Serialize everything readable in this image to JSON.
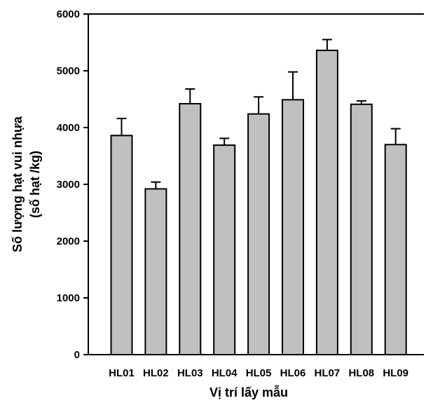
{
  "chart_data": {
    "type": "bar",
    "categories": [
      "HL01",
      "HL02",
      "HL03",
      "HL04",
      "HL05",
      "HL06",
      "HL07",
      "HL08",
      "HL09"
    ],
    "values": [
      3860,
      2920,
      4420,
      3690,
      4240,
      4490,
      5360,
      4410,
      3700
    ],
    "errors": [
      300,
      120,
      260,
      120,
      300,
      490,
      190,
      60,
      280
    ],
    "xlabel": "Vị trí lấy mẫu",
    "ylabel_lines": [
      "Số lượng hạt vui nhựa",
      "(số hạt /kg)"
    ],
    "ylim": [
      0,
      6000
    ],
    "yticks": [
      0,
      1000,
      2000,
      3000,
      4000,
      5000,
      6000
    ],
    "grid": false,
    "colors": {
      "bar_fill": "#c0c0c0",
      "bar_stroke": "#000000"
    }
  }
}
